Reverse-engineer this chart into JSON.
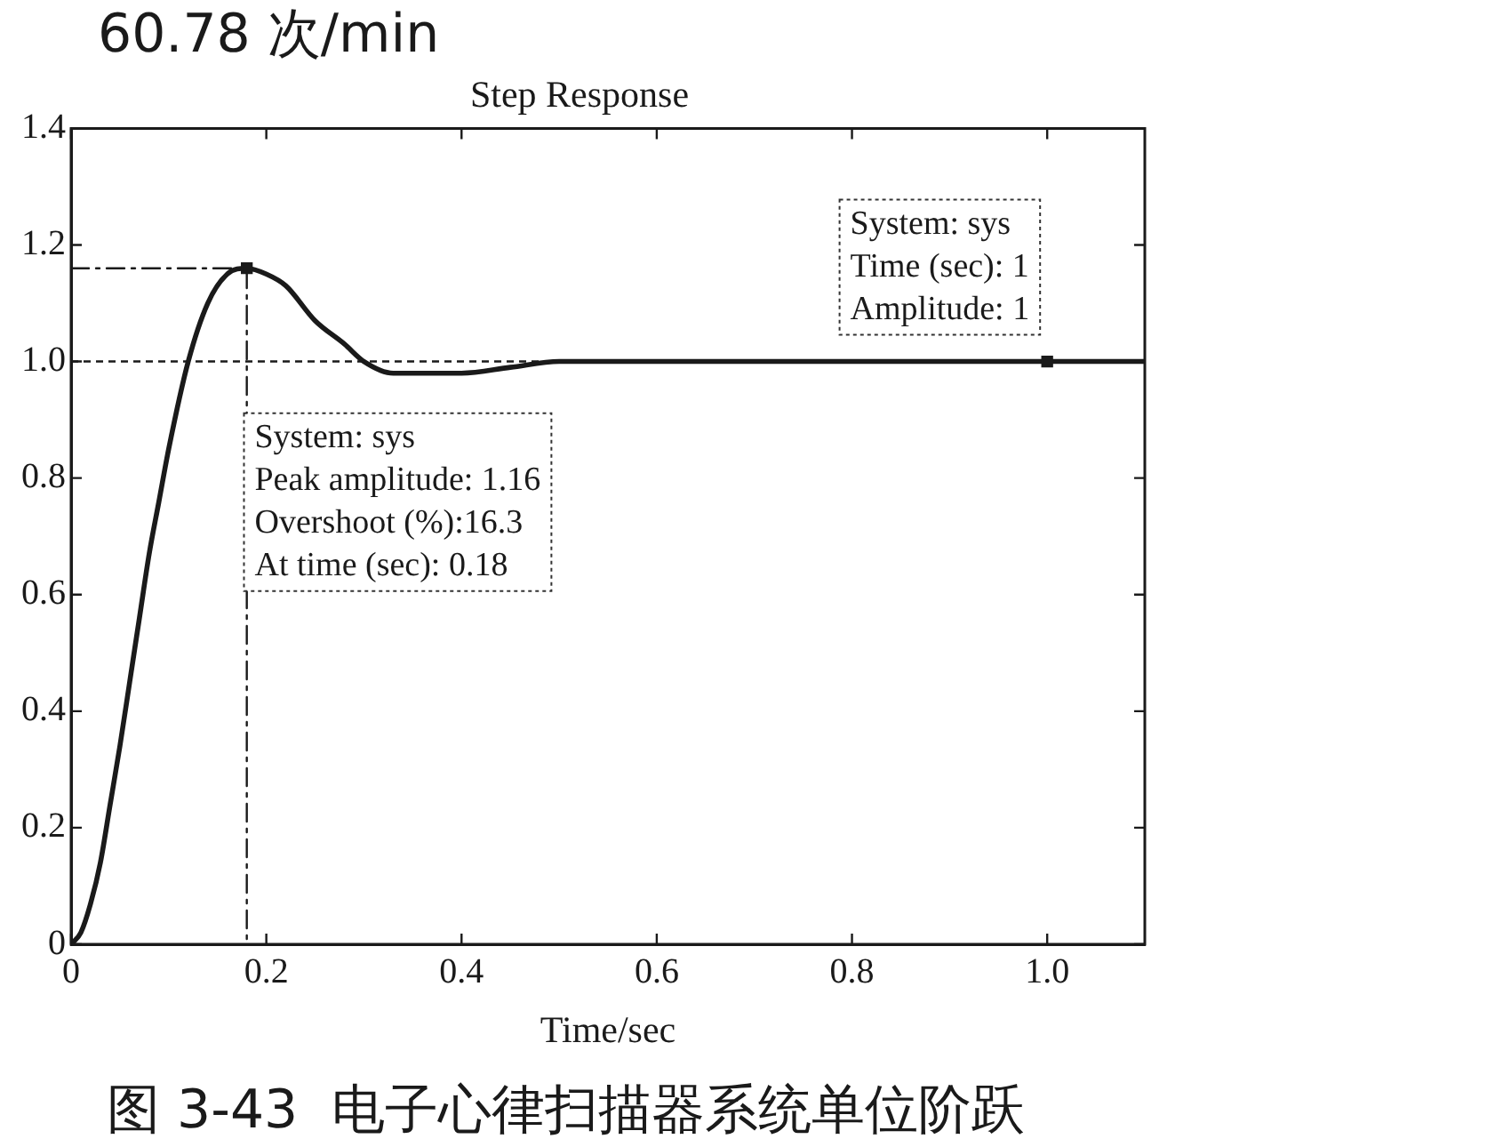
{
  "chart_data": {
    "type": "line",
    "title": "Step Response",
    "xlabel": "Time/sec",
    "xlim": [
      0,
      1.1
    ],
    "xticks": [
      0,
      0.2,
      0.4,
      0.6,
      0.8,
      {
        "value": 1,
        "label": "1.0"
      }
    ],
    "ylim": [
      0,
      1.4
    ],
    "yticks": [
      0,
      0.2,
      0.4,
      0.6,
      0.8,
      {
        "value": 1,
        "label": "1.0"
      },
      1.2,
      1.4
    ],
    "grid": false,
    "legend": false,
    "marker": "none",
    "series": [
      {
        "type": "line",
        "color": "#1a1a1a",
        "x": [
          0,
          0.01,
          0.02,
          0.03,
          0.04,
          0.05,
          0.06,
          0.07,
          0.08,
          0.09,
          0.1,
          0.12,
          0.14,
          0.16,
          0.18,
          0.2,
          0.22,
          0.25,
          0.28,
          0.3,
          0.33,
          0.36,
          0.4,
          0.45,
          0.5,
          0.55,
          0.6,
          0.7,
          0.8,
          0.9,
          1,
          1.1
        ],
        "values": [
          0,
          0.02,
          0.07,
          0.14,
          0.24,
          0.34,
          0.45,
          0.56,
          0.67,
          0.76,
          0.85,
          1.0,
          1.1,
          1.15,
          1.16,
          1.15,
          1.13,
          1.07,
          1.03,
          1.0,
          0.98,
          0.98,
          0.98,
          0.99,
          1.0,
          1.0,
          1.0,
          1.0,
          1.0,
          1.0,
          1,
          1
        ]
      },
      {
        "type": "line",
        "color": "#1a1a1a",
        "line_style": "dashed",
        "x": [
          0,
          0.18,
          0.18
        ],
        "values": [
          1.16,
          1.16,
          0
        ]
      },
      {
        "type": "scatter",
        "color": "#1a1a1a",
        "marker": "square",
        "x": [
          0.18,
          1
        ],
        "values": [
          1.16,
          1
        ]
      }
    ],
    "ref_lines": [
      {
        "axis": "y",
        "value": 1,
        "line_style": "dashed",
        "color": "#1a1a1a"
      }
    ],
    "annotations": [
      "System: sys\nPeak amplitude: 1.16\nOvershoot (%):16.3\nAt time (sec): 0.18",
      {
        "text": "System: sys\nTime (sec): 1\nAmplitude: 1",
        "x": 1,
        "y": 1
      },
      "60.78 次/min",
      "图 3-43  电子心律扫描器系统单位阶跃"
    ]
  }
}
